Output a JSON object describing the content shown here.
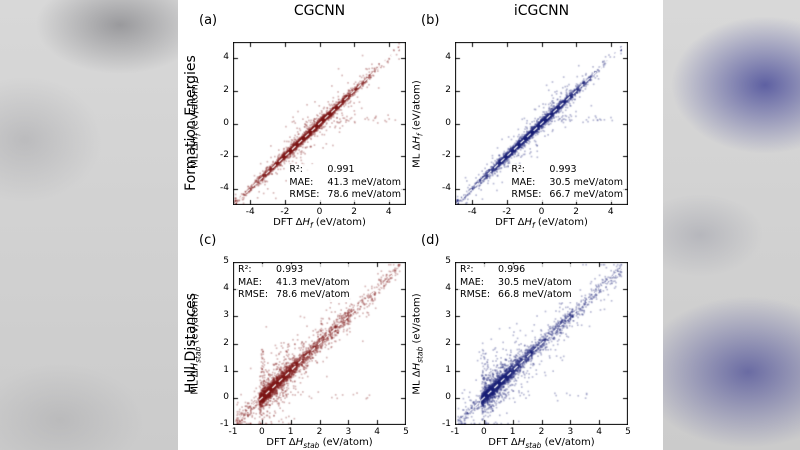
{
  "figure": {
    "columns": [
      {
        "label": "CGCNN"
      },
      {
        "label": "iCGCNN"
      }
    ],
    "rows": [
      {
        "label": "Formation Energies"
      },
      {
        "label": "Hull Distances"
      }
    ]
  },
  "chart_data": [
    {
      "panel_label": "(a)",
      "row": 0,
      "col": 0,
      "type": "scatter",
      "series": "CGCNN formation energy parity",
      "point_color": "#7d1616",
      "xlabel": {
        "pre": "DFT Δ",
        "var": "H",
        "sub": "f",
        "post": " (eV/atom)"
      },
      "ylabel": {
        "pre": "ML Δ",
        "var": "H",
        "sub": "f",
        "post": " (eV/atom)"
      },
      "xlim": [
        -5,
        5
      ],
      "ylim": [
        -5,
        5
      ],
      "xticks": [
        -4,
        -2,
        0,
        2,
        4
      ],
      "yticks": [
        -4,
        -2,
        0,
        2,
        4
      ],
      "parity_line": {
        "color": "#ffffff",
        "style": "dashed"
      },
      "stats": {
        "rows": [
          [
            "R²:",
            "0.991"
          ],
          [
            "MAE:",
            "41.3 meV/atom"
          ],
          [
            "RMSE:",
            "78.6 meV/atom"
          ]
        ]
      },
      "stats_position": "bottom-right",
      "cloud_profile": "formation"
    },
    {
      "panel_label": "(b)",
      "row": 0,
      "col": 1,
      "type": "scatter",
      "series": "iCGCNN formation energy parity",
      "point_color": "#1c2078",
      "xlabel": {
        "pre": "DFT Δ",
        "var": "H",
        "sub": "f",
        "post": " (eV/atom)"
      },
      "ylabel": {
        "pre": "ML Δ",
        "var": "H",
        "sub": "f",
        "post": " (eV/atom)"
      },
      "xlim": [
        -5,
        5
      ],
      "ylim": [
        -5,
        5
      ],
      "xticks": [
        -4,
        -2,
        0,
        2,
        4
      ],
      "yticks": [
        -4,
        -2,
        0,
        2,
        4
      ],
      "parity_line": {
        "color": "#ffffff",
        "style": "dashed"
      },
      "stats": {
        "rows": [
          [
            "R²:",
            "0.993"
          ],
          [
            "MAE:",
            "30.5 meV/atom"
          ],
          [
            "RMSE:",
            "66.7 meV/atom"
          ]
        ]
      },
      "stats_position": "bottom-right",
      "cloud_profile": "formation"
    },
    {
      "panel_label": "(c)",
      "row": 1,
      "col": 0,
      "type": "scatter",
      "series": "CGCNN hull distance parity",
      "point_color": "#7d1616",
      "xlabel": {
        "pre": "DFT Δ",
        "var": "H",
        "sub": "stab",
        "post": " (eV/atom)"
      },
      "ylabel": {
        "pre": "ML Δ",
        "var": "H",
        "sub": "stab",
        "post": " (eV/atom)"
      },
      "xlim": [
        -1,
        5
      ],
      "ylim": [
        -1,
        5
      ],
      "xticks": [
        -1,
        0,
        1,
        2,
        3,
        4,
        5
      ],
      "yticks": [
        -1,
        0,
        1,
        2,
        3,
        4,
        5
      ],
      "parity_line": {
        "color": "#ffffff",
        "style": "dashed"
      },
      "stats": {
        "rows": [
          [
            "R²:",
            "0.993"
          ],
          [
            "MAE:",
            "41.3 meV/atom"
          ],
          [
            "RMSE:",
            "78.6 meV/atom"
          ]
        ]
      },
      "stats_position": "top-left",
      "cloud_profile": "hull"
    },
    {
      "panel_label": "(d)",
      "row": 1,
      "col": 1,
      "type": "scatter",
      "series": "iCGCNN hull distance parity",
      "point_color": "#1c2078",
      "xlabel": {
        "pre": "DFT Δ",
        "var": "H",
        "sub": "stab",
        "post": " (eV/atom)"
      },
      "ylabel": {
        "pre": "ML Δ",
        "var": "H",
        "sub": "stab",
        "post": " (eV/atom)"
      },
      "xlim": [
        -1,
        5
      ],
      "ylim": [
        -1,
        5
      ],
      "xticks": [
        -1,
        0,
        1,
        2,
        3,
        4,
        5
      ],
      "yticks": [
        -1,
        0,
        1,
        2,
        3,
        4,
        5
      ],
      "parity_line": {
        "color": "#ffffff",
        "style": "dashed"
      },
      "stats": {
        "rows": [
          [
            "R²:",
            "0.996"
          ],
          [
            "MAE:",
            "30.5 meV/atom"
          ],
          [
            "RMSE:",
            "66.8 meV/atom"
          ]
        ]
      },
      "stats_position": "top-left",
      "cloud_profile": "hull"
    }
  ]
}
